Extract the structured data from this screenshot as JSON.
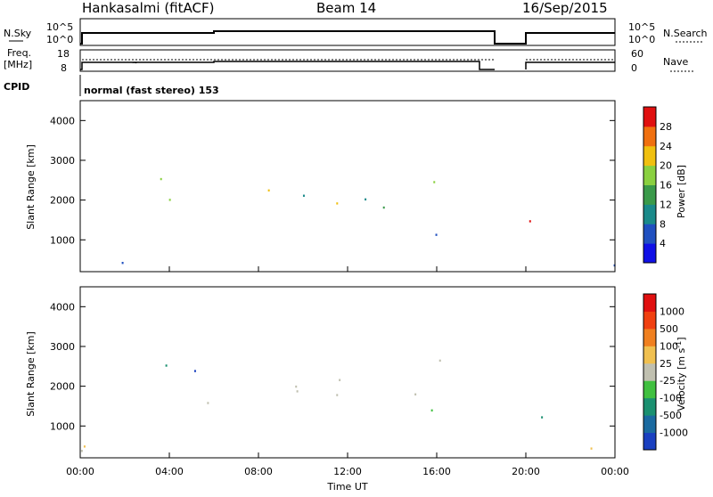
{
  "header": {
    "station": "Hankasalmi (fitACF)",
    "beam": "Beam 14",
    "date": "16/Sep/2015"
  },
  "top_panel": {
    "left_label": "N.Sky",
    "right_label": "N.Search",
    "left_ticks": [
      "10^5",
      "10^0"
    ],
    "right_ticks": [
      "10^5",
      "10^0"
    ]
  },
  "freq_panel": {
    "left_label_1": "Freq.",
    "left_label_2": "[MHz]",
    "right_label": "Nave",
    "left_ticks": [
      "18",
      "8"
    ],
    "right_ticks": [
      "60",
      "0"
    ]
  },
  "cpid": {
    "label": "CPID",
    "text": "normal (fast stereo) 153"
  },
  "chart_data": [
    {
      "type": "heatmap",
      "panel": "power",
      "ylabel": "Slant Range [km]",
      "ylim": [
        200,
        4500
      ],
      "yticks": [
        "4000",
        "3000",
        "2000",
        "1000"
      ],
      "ytick_values": [
        4000,
        3000,
        2000,
        1000
      ],
      "colorbar": {
        "label": "Power [dB]",
        "ticks": [
          "28",
          "24",
          "20",
          "16",
          "12",
          "8",
          "4"
        ],
        "colors": [
          "#1010e6",
          "#2050c0",
          "#1a8a8a",
          "#3a9a4a",
          "#8ad040",
          "#f0c010",
          "#f07010",
          "#e01010"
        ]
      }
    },
    {
      "type": "heatmap",
      "panel": "velocity",
      "ylabel": "Slant Range [km]",
      "ylim": [
        200,
        4500
      ],
      "yticks": [
        "4000",
        "3000",
        "2000",
        "1000"
      ],
      "ytick_values": [
        4000,
        3000,
        2000,
        1000
      ],
      "xlabel": "Time UT",
      "xticks": [
        "00:00",
        "04:00",
        "08:00",
        "12:00",
        "16:00",
        "20:00",
        "00:00"
      ],
      "xtick_hours": [
        0,
        4,
        8,
        12,
        16,
        20,
        24
      ],
      "colorbar": {
        "label": "Velocity [m s",
        "label_sup": "-1",
        "label_end": "]",
        "ticks": [
          "1000",
          "500",
          "100",
          "25",
          "-25",
          "-100",
          "-500",
          "-1000"
        ],
        "colors": [
          "#1a40c0",
          "#1a6aa0",
          "#1a9070",
          "#40c040",
          "#c0c0b0",
          "#f0c050",
          "#f08020",
          "#f04010",
          "#e01010"
        ]
      }
    }
  ]
}
